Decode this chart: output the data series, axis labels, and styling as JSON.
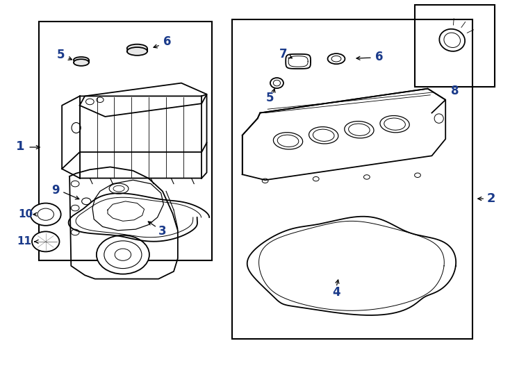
{
  "bg_color": "#ffffff",
  "line_color": "#000000",
  "label_color": "#1a3a8a",
  "fig_width": 7.34,
  "fig_height": 5.4,
  "dpi": 100
}
